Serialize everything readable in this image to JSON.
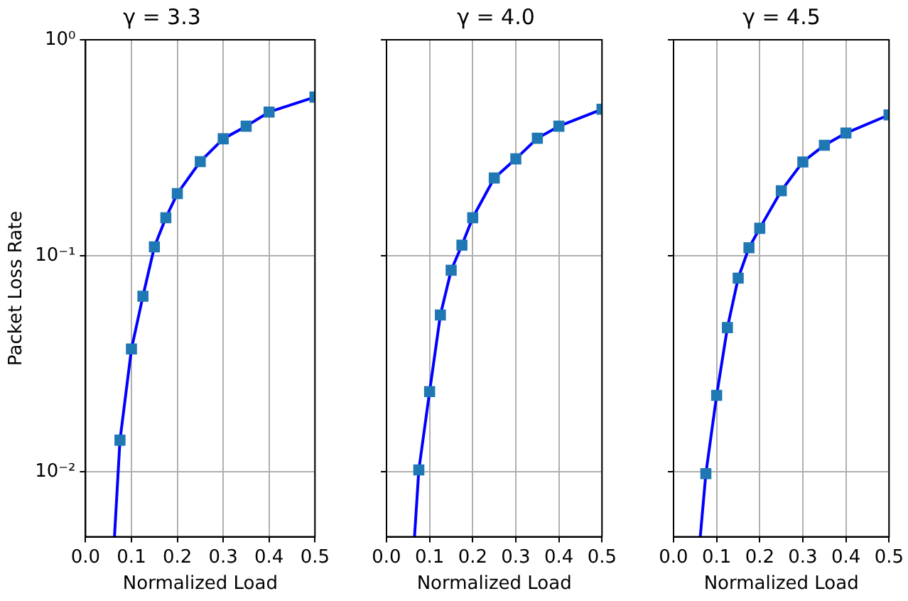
{
  "chart_data": [
    {
      "type": "scatter",
      "title": "γ = 3.3",
      "xlabel": "Normalized Load",
      "ylabel": "Packet Loss Rate",
      "log": "y",
      "grid": true,
      "xlim": [
        0,
        0.5
      ],
      "xticks": [
        {
          "value": 0,
          "label": "0.0"
        },
        {
          "value": 0.1,
          "label": "0.1"
        },
        {
          "value": 0.2,
          "label": "0.2"
        },
        {
          "value": 0.3,
          "label": "0.3"
        },
        {
          "value": 0.4,
          "label": "0.4"
        },
        {
          "value": 0.5,
          "label": "0.5"
        }
      ],
      "ylim": [
        0.005,
        1
      ],
      "yticks": [
        {
          "value": 0.01,
          "label": "10⁻²"
        },
        {
          "value": 0.1,
          "label": "10⁻¹"
        },
        {
          "value": 1,
          "label": "10⁰"
        }
      ],
      "series": [
        {
          "type": "line",
          "color": "#0000ff",
          "marker": "none",
          "x": [
            0.063,
            0.075,
            0.1,
            0.125,
            0.15,
            0.175,
            0.2,
            0.25,
            0.3,
            0.35,
            0.4,
            0.5
          ],
          "values": [
            0.005,
            0.014,
            0.037,
            0.065,
            0.11,
            0.15,
            0.194,
            0.273,
            0.348,
            0.398,
            0.463,
            0.543
          ]
        },
        {
          "type": "scatter",
          "color": "#1f77b4",
          "marker": "square",
          "x": [
            0.075,
            0.1,
            0.125,
            0.15,
            0.175,
            0.2,
            0.25,
            0.3,
            0.35,
            0.4,
            0.5
          ],
          "values": [
            0.014,
            0.037,
            0.065,
            0.11,
            0.15,
            0.194,
            0.273,
            0.348,
            0.398,
            0.463,
            0.543
          ]
        }
      ]
    },
    {
      "type": "scatter",
      "title": "γ = 4.0",
      "xlabel": "Normalized Load",
      "log": "y",
      "grid": true,
      "tick_labels": "x",
      "xlim": [
        0,
        0.5
      ],
      "xticks": [
        {
          "value": 0,
          "label": "0.0"
        },
        {
          "value": 0.1,
          "label": "0.1"
        },
        {
          "value": 0.2,
          "label": "0.2"
        },
        {
          "value": 0.3,
          "label": "0.3"
        },
        {
          "value": 0.4,
          "label": "0.4"
        },
        {
          "value": 0.5,
          "label": "0.5"
        }
      ],
      "ylim": [
        0.005,
        1
      ],
      "yticks": [
        {
          "value": 0.01,
          "label": null
        },
        {
          "value": 0.1,
          "label": null
        },
        {
          "value": 1,
          "label": null
        }
      ],
      "series": [
        {
          "type": "line",
          "color": "#0000ff",
          "marker": "none",
          "x": [
            0.065,
            0.075,
            0.1,
            0.125,
            0.15,
            0.175,
            0.2,
            0.25,
            0.3,
            0.35,
            0.4,
            0.5
          ],
          "values": [
            0.005,
            0.0102,
            0.0235,
            0.0532,
            0.0857,
            0.112,
            0.15,
            0.229,
            0.281,
            0.35,
            0.398,
            0.477
          ]
        },
        {
          "type": "scatter",
          "color": "#1f77b4",
          "marker": "square",
          "x": [
            0.075,
            0.1,
            0.125,
            0.15,
            0.175,
            0.2,
            0.25,
            0.3,
            0.35,
            0.4,
            0.5
          ],
          "values": [
            0.0102,
            0.0235,
            0.0532,
            0.0857,
            0.112,
            0.15,
            0.229,
            0.281,
            0.35,
            0.398,
            0.477
          ]
        }
      ]
    },
    {
      "type": "scatter",
      "title": "γ = 4.5",
      "xlabel": "Normalized Load",
      "log": "y",
      "grid": true,
      "tick_labels": "x",
      "xlim": [
        0,
        0.5
      ],
      "xticks": [
        {
          "value": 0,
          "label": "0.0"
        },
        {
          "value": 0.1,
          "label": "0.1"
        },
        {
          "value": 0.2,
          "label": "0.2"
        },
        {
          "value": 0.3,
          "label": "0.3"
        },
        {
          "value": 0.4,
          "label": "0.4"
        },
        {
          "value": 0.5,
          "label": "0.5"
        }
      ],
      "ylim": [
        0.005,
        1
      ],
      "yticks": [
        {
          "value": 0.01,
          "label": null
        },
        {
          "value": 0.1,
          "label": null
        },
        {
          "value": 1,
          "label": null
        }
      ],
      "series": [
        {
          "type": "line",
          "color": "#0000ff",
          "marker": "none",
          "x": [
            0.062,
            0.075,
            0.1,
            0.125,
            0.15,
            0.175,
            0.2,
            0.25,
            0.3,
            0.35,
            0.4,
            0.5
          ],
          "values": [
            0.005,
            0.0098,
            0.0226,
            0.0465,
            0.0788,
            0.109,
            0.134,
            0.2,
            0.272,
            0.325,
            0.37,
            0.449
          ]
        },
        {
          "type": "scatter",
          "color": "#1f77b4",
          "marker": "square",
          "x": [
            0.075,
            0.1,
            0.125,
            0.15,
            0.175,
            0.2,
            0.25,
            0.3,
            0.35,
            0.4,
            0.5
          ],
          "values": [
            0.0098,
            0.0226,
            0.0465,
            0.0788,
            0.109,
            0.134,
            0.2,
            0.272,
            0.325,
            0.37,
            0.449
          ]
        }
      ]
    }
  ]
}
